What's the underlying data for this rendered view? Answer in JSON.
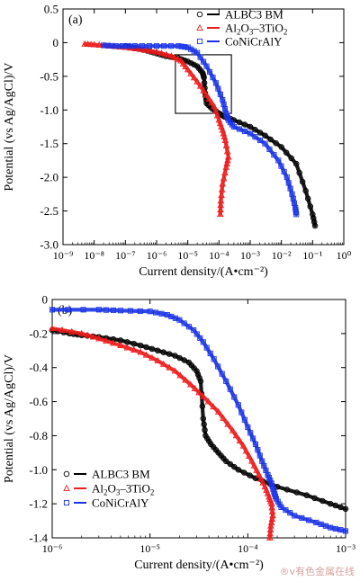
{
  "y_axis_label": "Potential (vs Ag/AgCl)/V",
  "x_axis_label": "Current density/(A•cm⁻²)",
  "watermark": "®v有色金属在线",
  "colors": {
    "ALBC3 BM": "#000000",
    "Al2O3-3TiO2": "#ee1c1c",
    "CoNiCrAlY": "#1a33e6"
  },
  "chart_data": [
    {
      "panel": "(a)",
      "type": "line",
      "x_scale": "log",
      "xlim": [
        1e-09,
        1
      ],
      "ylim": [
        -3.0,
        0.5
      ],
      "xlabel": "Current density/(A•cm⁻²)",
      "ylabel": "Potential (vs Ag/AgCl)/V",
      "x_tick_labels": [
        "10⁻⁹",
        "10⁻⁸",
        "10⁻⁷",
        "10⁻⁶",
        "10⁻⁵",
        "10⁻⁴",
        "10⁻³",
        "10⁻²",
        "10⁻¹",
        "10⁰"
      ],
      "y_tick_labels": [
        "0.5",
        "0",
        "-0.5",
        "-1.0",
        "-1.5",
        "-2.0",
        "-2.5",
        "-3.0"
      ],
      "legend_position": "top-right",
      "inset_box": {
        "x_range": [
          4e-06,
          0.00025
        ],
        "y_range": [
          -1.05,
          -0.18
        ]
      },
      "series": [
        {
          "name": "ALBC3 BM",
          "marker": "circle",
          "color": "#000000",
          "x": [
            1e-07,
            2e-07,
            5e-07,
            1e-06,
            2e-06,
            5e-06,
            1e-05,
            2e-05,
            3e-05,
            3.3e-05,
            3.6e-05,
            4e-05,
            6e-05,
            0.0001,
            0.00015,
            0.0003,
            0.001,
            0.003,
            0.01,
            0.03,
            0.06,
            0.1,
            0.12
          ],
          "y": [
            -0.05,
            -0.08,
            -0.12,
            -0.16,
            -0.2,
            -0.23,
            -0.28,
            -0.35,
            -0.45,
            -0.52,
            -0.75,
            -0.9,
            -0.98,
            -1.05,
            -1.1,
            -1.15,
            -1.25,
            -1.38,
            -1.55,
            -1.8,
            -2.2,
            -2.55,
            -2.72
          ]
        },
        {
          "name": "Al2O3-3TiO2",
          "marker": "triangle",
          "color": "#ee1c1c",
          "x": [
            5e-09,
            1e-08,
            3e-08,
            1e-07,
            3e-07,
            1e-06,
            3e-06,
            6e-06,
            1e-05,
            2e-05,
            4e-05,
            7e-05,
            0.0001,
            0.00013,
            0.00016,
            0.0002,
            0.00017,
            0.00013,
            0.000115,
            0.00011
          ],
          "y": [
            -0.02,
            -0.03,
            -0.05,
            -0.07,
            -0.1,
            -0.14,
            -0.2,
            -0.27,
            -0.4,
            -0.58,
            -0.78,
            -0.95,
            -1.15,
            -1.3,
            -1.45,
            -1.7,
            -1.85,
            -2.1,
            -2.35,
            -2.55
          ]
        },
        {
          "name": "CoNiCrAlY",
          "marker": "square",
          "color": "#1a33e6",
          "x": [
            2e-08,
            5e-08,
            2e-07,
            1e-06,
            5e-06,
            1e-05,
            2e-05,
            4e-05,
            8e-05,
            0.00013,
            0.00017,
            0.0002,
            0.0003,
            0.001,
            0.003,
            0.008,
            0.015,
            0.022,
            0.028,
            0.03
          ],
          "y": [
            -0.04,
            -0.05,
            -0.05,
            -0.05,
            -0.05,
            -0.07,
            -0.15,
            -0.35,
            -0.6,
            -0.85,
            -1.05,
            -1.15,
            -1.25,
            -1.35,
            -1.5,
            -1.75,
            -2.0,
            -2.25,
            -2.45,
            -2.55
          ]
        }
      ]
    },
    {
      "panel": "(b)",
      "type": "line",
      "x_scale": "log",
      "xlim": [
        1e-06,
        0.001
      ],
      "ylim": [
        -1.4,
        0
      ],
      "xlabel": "Current density/(A•cm⁻²)",
      "ylabel": "Potential (vs Ag/AgCl)/V",
      "x_tick_labels": [
        "10⁻⁶",
        "10⁻⁵",
        "10⁻⁴",
        "10⁻³"
      ],
      "y_tick_labels": [
        "0",
        "-0.2",
        "-0.4",
        "-0.6",
        "-0.8",
        "-1.0",
        "-1.2",
        "-1.4"
      ],
      "legend_position": "bottom-left",
      "series": [
        {
          "name": "ALBC3 BM",
          "marker": "circle",
          "color": "#000000",
          "x": [
            1e-06,
            1.5e-06,
            2e-06,
            3e-06,
            5e-06,
            8e-06,
            1.2e-05,
            1.8e-05,
            2.5e-05,
            3e-05,
            3.3e-05,
            3.5e-05,
            3.7e-05,
            4.2e-05,
            5e-05,
            6e-05,
            8e-05,
            0.00012,
            0.0002,
            0.0004,
            0.0007,
            0.001
          ],
          "y": [
            -0.18,
            -0.2,
            -0.21,
            -0.22,
            -0.24,
            -0.27,
            -0.3,
            -0.33,
            -0.37,
            -0.42,
            -0.48,
            -0.7,
            -0.8,
            -0.85,
            -0.9,
            -0.95,
            -1.0,
            -1.05,
            -1.1,
            -1.15,
            -1.2,
            -1.23
          ]
        },
        {
          "name": "Al2O3-3TiO2",
          "marker": "triangle",
          "color": "#ee1c1c",
          "x": [
            1e-06,
            2e-06,
            3e-06,
            5e-06,
            8e-06,
            1.2e-05,
            1.8e-05,
            2.6e-05,
            3.5e-05,
            5e-05,
            7e-05,
            9e-05,
            0.00011,
            0.00013,
            0.00015,
            0.000165,
            0.000175,
            0.00018,
            0.000172,
            0.000168
          ],
          "y": [
            -0.17,
            -0.2,
            -0.23,
            -0.27,
            -0.31,
            -0.36,
            -0.42,
            -0.5,
            -0.57,
            -0.66,
            -0.77,
            -0.86,
            -0.95,
            -1.03,
            -1.1,
            -1.16,
            -1.2,
            -1.27,
            -1.33,
            -1.4
          ]
        },
        {
          "name": "CoNiCrAlY",
          "marker": "square",
          "color": "#1a33e6",
          "x": [
            1e-06,
            3e-06,
            5e-06,
            1e-05,
            1.5e-05,
            2e-05,
            2.8e-05,
            3.5e-05,
            4.5e-05,
            6e-05,
            8e-05,
            0.0001,
            0.00012,
            0.00014,
            0.00016,
            0.000175,
            0.000185,
            0.000195,
            0.00022,
            0.0003,
            0.0005,
            0.0007,
            0.001
          ],
          "y": [
            -0.06,
            -0.06,
            -0.065,
            -0.07,
            -0.09,
            -0.12,
            -0.18,
            -0.25,
            -0.35,
            -0.48,
            -0.62,
            -0.75,
            -0.85,
            -0.95,
            -1.03,
            -1.08,
            -1.13,
            -1.17,
            -1.22,
            -1.27,
            -1.31,
            -1.34,
            -1.36
          ]
        }
      ]
    }
  ]
}
